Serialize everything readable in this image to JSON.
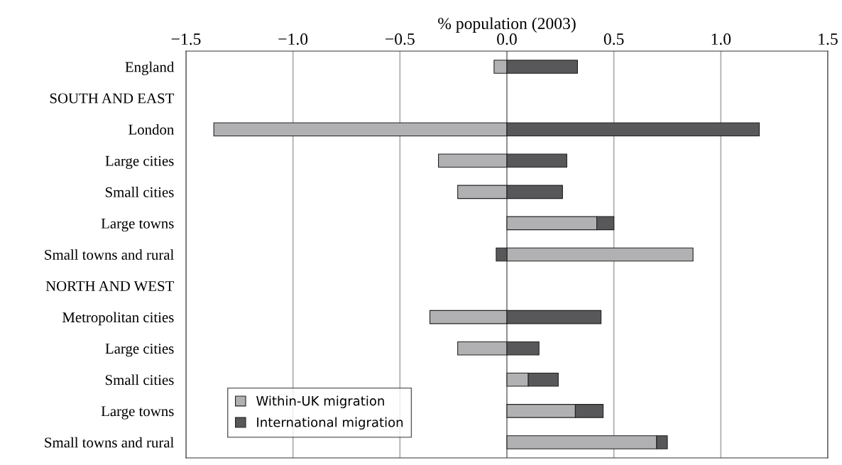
{
  "chart_data": {
    "type": "bar",
    "orientation": "horizontal",
    "stacked": true,
    "xlabel": "% population (2003)",
    "categories": [
      "England",
      "SOUTH AND EAST",
      "London",
      "Large cities",
      "Small cities",
      "Large towns",
      "Small towns and rural",
      "NORTH AND WEST",
      "Metropolitan cities",
      "Large cities",
      "Small cities",
      "Large towns",
      "Small towns and rural"
    ],
    "series": [
      {
        "name": "Within-UK migration",
        "color": "#b1b1b3",
        "values": [
          -0.06,
          null,
          -1.37,
          -0.32,
          -0.23,
          0.42,
          0.87,
          null,
          -0.36,
          -0.23,
          0.1,
          0.32,
          0.7
        ]
      },
      {
        "name": "International migration",
        "color": "#58585a",
        "values": [
          0.33,
          null,
          1.18,
          0.28,
          0.26,
          0.08,
          -0.05,
          null,
          0.44,
          0.15,
          0.14,
          0.13,
          0.05
        ]
      }
    ],
    "xlim": [
      -1.5,
      1.5
    ],
    "xticks": [
      {
        "value": -1.5,
        "label": "−1.5"
      },
      {
        "value": -1.0,
        "label": "−1.0"
      },
      {
        "value": -0.5,
        "label": "−0.5"
      },
      {
        "value": 0.0,
        "label": "0.0"
      },
      {
        "value": 0.5,
        "label": "0.5"
      },
      {
        "value": 1.0,
        "label": "1.0"
      },
      {
        "value": 1.5,
        "label": "1.5"
      }
    ],
    "grid": "x",
    "legend": "bottom left"
  }
}
